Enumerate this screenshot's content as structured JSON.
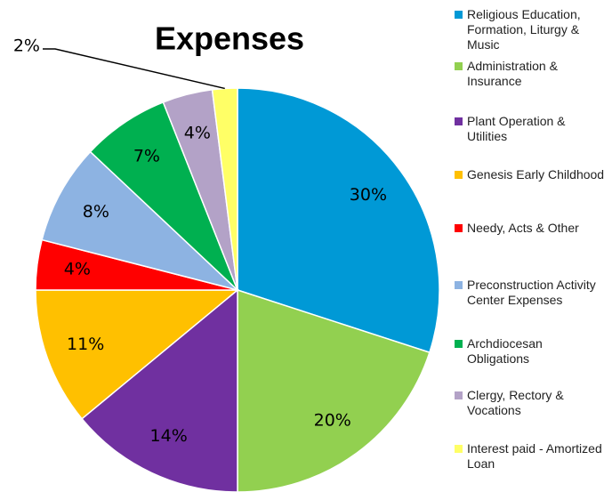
{
  "chart_data": {
    "type": "pie",
    "title": "Expenses",
    "categories": [
      "Religious Education, Formation, Liturgy & Music",
      "Administration & Insurance",
      "Plant Operation & Utilities",
      "Genesis Early Childhood",
      "Needy, Acts & Other",
      "Preconstruction Activity Center Expenses",
      "Archdiocesan Obligations",
      "Clergy, Rectory & Vocations",
      "Interest paid - Amortized Loan"
    ],
    "values": [
      30,
      20,
      14,
      11,
      4,
      8,
      7,
      4,
      2
    ],
    "value_labels": [
      "30%",
      "20%",
      "14%",
      "11%",
      "4%",
      "8%",
      "7%",
      "4%",
      "2%"
    ],
    "colors": [
      "#0099d6",
      "#92d050",
      "#7030a0",
      "#ffc000",
      "#ff0000",
      "#8db3e2",
      "#00b050",
      "#b3a2c7",
      "#ffff66"
    ],
    "legend": "right"
  }
}
